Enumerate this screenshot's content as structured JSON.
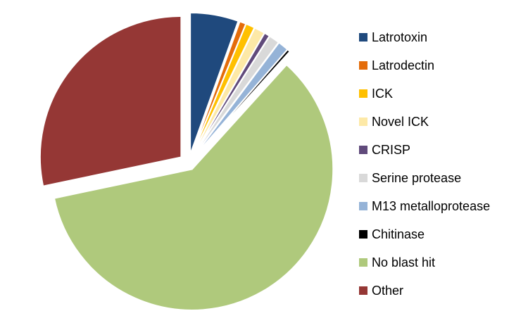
{
  "chart_data": {
    "type": "pie",
    "legend": "right",
    "series": [
      {
        "name": "Latrotoxin",
        "color": "#1f497d",
        "values": [
          5.5
        ]
      },
      {
        "name": "Latrodectin",
        "color": "#e46c0a",
        "values": [
          0.7
        ]
      },
      {
        "name": "ICK",
        "color": "#ffc000",
        "values": [
          1
        ]
      },
      {
        "name": "Novel ICK",
        "color": "#fde9a7",
        "values": [
          1.2
        ]
      },
      {
        "name": "CRISP",
        "color": "#604a7b",
        "values": [
          0.6
        ]
      },
      {
        "name": "Serine protease",
        "color": "#d9d9d9",
        "values": [
          1.2
        ]
      },
      {
        "name": "M13 metalloprotease",
        "color": "#95b3d7",
        "values": [
          1.2
        ]
      },
      {
        "name": "Chitinase",
        "color": "#000000",
        "values": [
          0.3
        ]
      },
      {
        "name": "No blast hit",
        "color": "#afc97c",
        "values": [
          60
        ]
      },
      {
        "name": "Other",
        "color": "#953735",
        "values": [
          28.3
        ]
      }
    ]
  }
}
